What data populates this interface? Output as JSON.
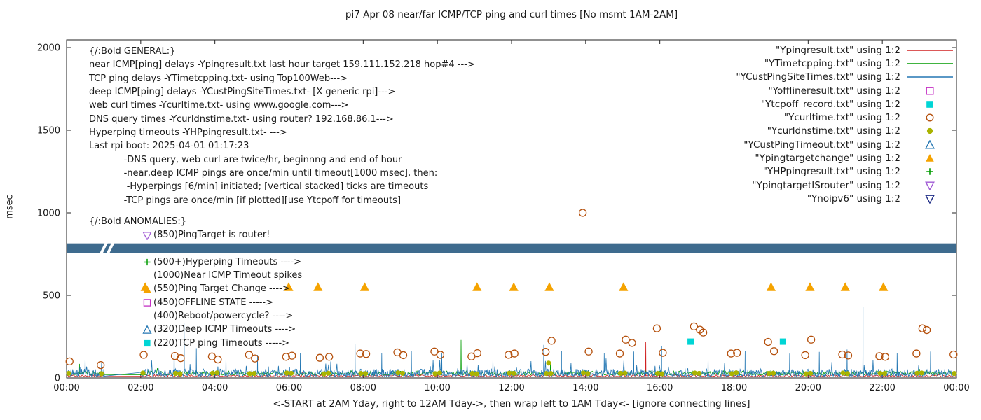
{
  "title": "pi7 Apr 08  near/far ICMP/TCP ping and curl times [No msmt 1AM-2AM]",
  "xlabel": "<-START at 2AM Yday, right to 12AM Tday->, then wrap left to 1AM Tday<- [ignore connecting lines]",
  "ylabel": "msec",
  "axes": {
    "x_tick_labels": [
      "00:00",
      "02:00",
      "04:00",
      "06:00",
      "08:00",
      "10:00",
      "12:00",
      "14:00",
      "16:00",
      "18:00",
      "20:00",
      "22:00",
      "00:00"
    ],
    "x_tick_hours": [
      0,
      2,
      4,
      6,
      8,
      10,
      12,
      14,
      16,
      18,
      20,
      22,
      24
    ],
    "y_tick_labels": [
      "0",
      "500",
      "1000",
      "1500",
      "2000"
    ],
    "y_tick_values": [
      0,
      500,
      1000,
      1500,
      2000
    ]
  },
  "legend": [
    {
      "label": "\"Ypingresult.txt\" using 1:2",
      "marker": "line",
      "color": "#d02020"
    },
    {
      "label": "\"YTimetcpping.txt\" using 1:2",
      "marker": "line",
      "color": "#009c00"
    },
    {
      "label": "\"YCustPingSiteTimes.txt\" using 1:2",
      "marker": "line",
      "color": "#2477b3"
    },
    {
      "label": "\"Yofflineresult.txt\" using 1:2",
      "marker": "open-square",
      "color": "#c430c4"
    },
    {
      "label": "\"Ytcpoff_record.txt\" using 1:2",
      "marker": "filled-square",
      "color": "#00d5d5"
    },
    {
      "label": "\"Ycurltime.txt\" using 1:2",
      "marker": "open-circle",
      "color": "#b5500c"
    },
    {
      "label": "\"Ycurldnstime.txt\" using 1:2",
      "marker": "filled-circle",
      "color": "#aab300"
    },
    {
      "label": "\"YCustPingTimeout.txt\" using 1:2",
      "marker": "open-triangle-up",
      "color": "#2477b3"
    },
    {
      "label": "\"Ypingtargetchange\" using 1:2",
      "marker": "filled-triangle-up",
      "color": "#f5a300"
    },
    {
      "label": "\"YHPpingresult.txt\" using 1:2",
      "marker": "plus",
      "color": "#009c00"
    },
    {
      "label": "\"YpingtargetISrouter\" using 1:2",
      "marker": "open-triangle-down",
      "color": "#a05ad5"
    },
    {
      "label": "\"Ynoipv6\" using 1:2",
      "marker": "open-triangle-down",
      "color": "#1f2d86"
    }
  ],
  "annotations": {
    "general": [
      "{/:Bold GENERAL:}",
      "near ICMP[ping] delays -Ypingresult.txt last hour target 159.111.152.218 hop#4 --->",
      "TCP ping delays -YTimetcpping.txt- using Top100Web--->",
      "deep ICMP[ping] delays -YCustPingSiteTimes.txt- [X generic rpi]--->",
      "web curl times -Ycurltime.txt- using www.google.com--->",
      "DNS query times -Ycurldnstime.txt- using router? 192.168.86.1--->",
      "Hyperping timeouts -YHPpingresult.txt- --->",
      "Last rpi boot: 2025-04-01 01:17:23",
      "            -DNS query, web curl are twice/hr, beginnng and end of hour",
      "            -near,deep ICMP pings are once/min until timeout[1000 msec], then:",
      "             -Hyperpings [6/min] initiated; [vertical stacked] ticks are timeouts",
      "            -TCP pings are once/min [if plotted][use Ytcpoff for timeouts]"
    ],
    "anomalies_header": "{/:Bold ANOMALIES:}",
    "anomalies": [
      {
        "marker": "open-triangle-down",
        "color": "#a05ad5",
        "text": "(850)PingTarget is router!"
      },
      {
        "marker": null,
        "color": null,
        "text": ""
      },
      {
        "marker": "plus",
        "color": "#009c00",
        "text": "(500+)Hyperping Timeouts ---->"
      },
      {
        "marker": null,
        "color": null,
        "text": "(1000)Near ICMP Timeout spikes"
      },
      {
        "marker": "filled-triangle-up",
        "color": "#f5a300",
        "text": "(550)Ping Target Change ---->"
      },
      {
        "marker": "open-square",
        "color": "#c430c4",
        "text": "(450)OFFLINE STATE ----->"
      },
      {
        "marker": null,
        "color": null,
        "text": "(400)Reboot/powercycle? ---->"
      },
      {
        "marker": "open-triangle-up",
        "color": "#2477b3",
        "text": "(320)Deep ICMP Timeouts ---->"
      },
      {
        "marker": "filled-square",
        "color": "#00d5d5",
        "text": "(220)TCP ping Timeouts ----->"
      }
    ]
  },
  "chart_data": {
    "type": "line+scatter",
    "title": "pi7 Apr 08  near/far ICMP/TCP ping and curl times [No msmt 1AM-2AM]",
    "xlabel": "<-START at 2AM Yday, right to 12AM Tday->, then wrap left to 1AM Tday<- [ignore connecting lines]",
    "ylabel": "msec",
    "x_range_hours": [
      0,
      24
    ],
    "ylim": [
      0,
      2050
    ],
    "no_measurement_gap_hours": [
      1.03,
      2.0
    ],
    "series": [
      {
        "name": "Ypingresult.txt",
        "style": "line",
        "color": "#d02020",
        "base": [
          8,
          20
        ],
        "jitter_p": 0.995,
        "jitter_extra": 20,
        "step": 0.03,
        "spikes": [
          [
            15.62,
            220
          ]
        ]
      },
      {
        "name": "YTimetcpping.txt",
        "style": "line",
        "color": "#009c00",
        "base": [
          18,
          42
        ],
        "jitter_p": 0.985,
        "jitter_extra": 30,
        "step": 0.025,
        "spikes": [
          [
            0.35,
            85
          ],
          [
            10.64,
            230
          ],
          [
            13.05,
            95
          ]
        ]
      },
      {
        "name": "YCustPingSiteTimes.txt",
        "style": "line",
        "color": "#2477b3",
        "base": [
          10,
          55
        ],
        "jitter_p": 0.955,
        "jitter_extra": 70,
        "step": 0.015,
        "spikes": [
          [
            0.5,
            140
          ],
          [
            2.9,
            230
          ],
          [
            3.17,
            330
          ],
          [
            3.5,
            180
          ],
          [
            4.3,
            150
          ],
          [
            5.15,
            140
          ],
          [
            6.3,
            150
          ],
          [
            7.78,
            205
          ],
          [
            8.5,
            150
          ],
          [
            9.3,
            162
          ],
          [
            10.12,
            150
          ],
          [
            11.5,
            142
          ],
          [
            12.87,
            200
          ],
          [
            13.35,
            162
          ],
          [
            14.5,
            150
          ],
          [
            15.3,
            160
          ],
          [
            16.05,
            192
          ],
          [
            17.3,
            150
          ],
          [
            18.3,
            162
          ],
          [
            19.5,
            148
          ],
          [
            20.3,
            158
          ],
          [
            21.05,
            172
          ],
          [
            21.48,
            430
          ],
          [
            22.4,
            152
          ],
          [
            23.3,
            160
          ]
        ]
      },
      {
        "name": "Ynoipv6",
        "style": "band",
        "color": "#3e6b8e",
        "y_band": [
          755,
          815
        ],
        "gap_slashes_hours": [
          1.0,
          1.18
        ]
      },
      {
        "name": "Ycurltime.txt",
        "style": "scatter",
        "marker": "open-circle",
        "color": "#b5500c",
        "points": [
          [
            0.08,
            100
          ],
          [
            0.92,
            78
          ],
          [
            2.08,
            140
          ],
          [
            2.92,
            133
          ],
          [
            3.08,
            120
          ],
          [
            3.92,
            130
          ],
          [
            4.08,
            112
          ],
          [
            4.92,
            140
          ],
          [
            5.08,
            118
          ],
          [
            5.92,
            128
          ],
          [
            6.08,
            135
          ],
          [
            6.83,
            122
          ],
          [
            7.08,
            128
          ],
          [
            7.92,
            148
          ],
          [
            8.08,
            145
          ],
          [
            8.92,
            155
          ],
          [
            9.08,
            138
          ],
          [
            9.92,
            160
          ],
          [
            10.08,
            140
          ],
          [
            10.92,
            130
          ],
          [
            11.08,
            150
          ],
          [
            11.92,
            140
          ],
          [
            12.08,
            148
          ],
          [
            12.92,
            158
          ],
          [
            13.08,
            225
          ],
          [
            13.92,
            1000
          ],
          [
            14.08,
            160
          ],
          [
            14.92,
            148
          ],
          [
            15.08,
            232
          ],
          [
            15.25,
            212
          ],
          [
            15.92,
            300
          ],
          [
            16.08,
            152
          ],
          [
            16.92,
            312
          ],
          [
            17.08,
            292
          ],
          [
            17.17,
            275
          ],
          [
            17.92,
            148
          ],
          [
            18.08,
            152
          ],
          [
            18.92,
            218
          ],
          [
            19.08,
            162
          ],
          [
            19.92,
            138
          ],
          [
            20.08,
            232
          ],
          [
            20.92,
            142
          ],
          [
            21.08,
            136
          ],
          [
            21.92,
            132
          ],
          [
            22.08,
            128
          ],
          [
            22.92,
            148
          ],
          [
            23.08,
            300
          ],
          [
            23.2,
            290
          ],
          [
            23.92,
            142
          ]
        ]
      },
      {
        "name": "Ycurldnstime.txt",
        "style": "scatter",
        "marker": "filled-circle",
        "color": "#aab300",
        "points": [
          [
            0.06,
            28
          ],
          [
            0.94,
            26
          ],
          [
            2.06,
            30
          ],
          [
            2.94,
            27
          ],
          [
            3.06,
            25
          ],
          [
            3.94,
            29
          ],
          [
            4.06,
            31
          ],
          [
            4.94,
            26
          ],
          [
            5.06,
            27
          ],
          [
            5.94,
            30
          ],
          [
            6.06,
            28
          ],
          [
            6.94,
            25
          ],
          [
            7.06,
            29
          ],
          [
            7.94,
            27
          ],
          [
            8.06,
            26
          ],
          [
            8.94,
            31
          ],
          [
            9.06,
            28
          ],
          [
            9.94,
            26
          ],
          [
            10.06,
            30
          ],
          [
            10.94,
            27
          ],
          [
            11.06,
            25
          ],
          [
            11.94,
            29
          ],
          [
            12.06,
            28
          ],
          [
            12.94,
            27
          ],
          [
            13.0,
            90
          ],
          [
            13.06,
            27
          ],
          [
            13.94,
            30
          ],
          [
            14.06,
            26
          ],
          [
            14.94,
            28
          ],
          [
            15.06,
            29
          ],
          [
            15.94,
            27
          ],
          [
            16.06,
            25
          ],
          [
            16.94,
            30
          ],
          [
            17.06,
            28
          ],
          [
            17.94,
            26
          ],
          [
            18.06,
            31
          ],
          [
            18.94,
            27
          ],
          [
            19.06,
            29
          ],
          [
            19.94,
            25
          ],
          [
            20.06,
            28
          ],
          [
            20.94,
            30
          ],
          [
            21.06,
            26
          ],
          [
            21.94,
            28
          ],
          [
            22.06,
            27
          ],
          [
            22.94,
            29
          ],
          [
            23.06,
            30
          ],
          [
            23.94,
            27
          ]
        ]
      },
      {
        "name": "Ypingtargetchange",
        "style": "scatter",
        "marker": "filled-triangle-up",
        "color": "#f5a300",
        "points": [
          [
            2.12,
            550
          ],
          [
            5.99,
            550
          ],
          [
            6.78,
            550
          ],
          [
            8.04,
            550
          ],
          [
            11.07,
            550
          ],
          [
            12.06,
            550
          ],
          [
            13.02,
            550
          ],
          [
            15.02,
            550
          ],
          [
            19.0,
            550
          ],
          [
            20.05,
            550
          ],
          [
            21.0,
            550
          ],
          [
            22.03,
            550
          ]
        ]
      },
      {
        "name": "Ytcpoff_record.txt",
        "style": "scatter",
        "marker": "filled-square",
        "color": "#00d5d5",
        "points": [
          [
            16.83,
            220
          ],
          [
            19.32,
            220
          ]
        ]
      },
      {
        "name": "Yofflineresult.txt",
        "style": "scatter",
        "marker": "open-square",
        "color": "#c430c4",
        "points": []
      },
      {
        "name": "YCustPingTimeout.txt",
        "style": "scatter",
        "marker": "open-triangle-up",
        "color": "#2477b3",
        "points": []
      },
      {
        "name": "YHPpingresult.txt",
        "style": "scatter",
        "marker": "plus",
        "color": "#009c00",
        "points": []
      },
      {
        "name": "YpingtargetISrouter",
        "style": "scatter",
        "marker": "open-triangle-down",
        "color": "#a05ad5",
        "points": []
      }
    ]
  }
}
